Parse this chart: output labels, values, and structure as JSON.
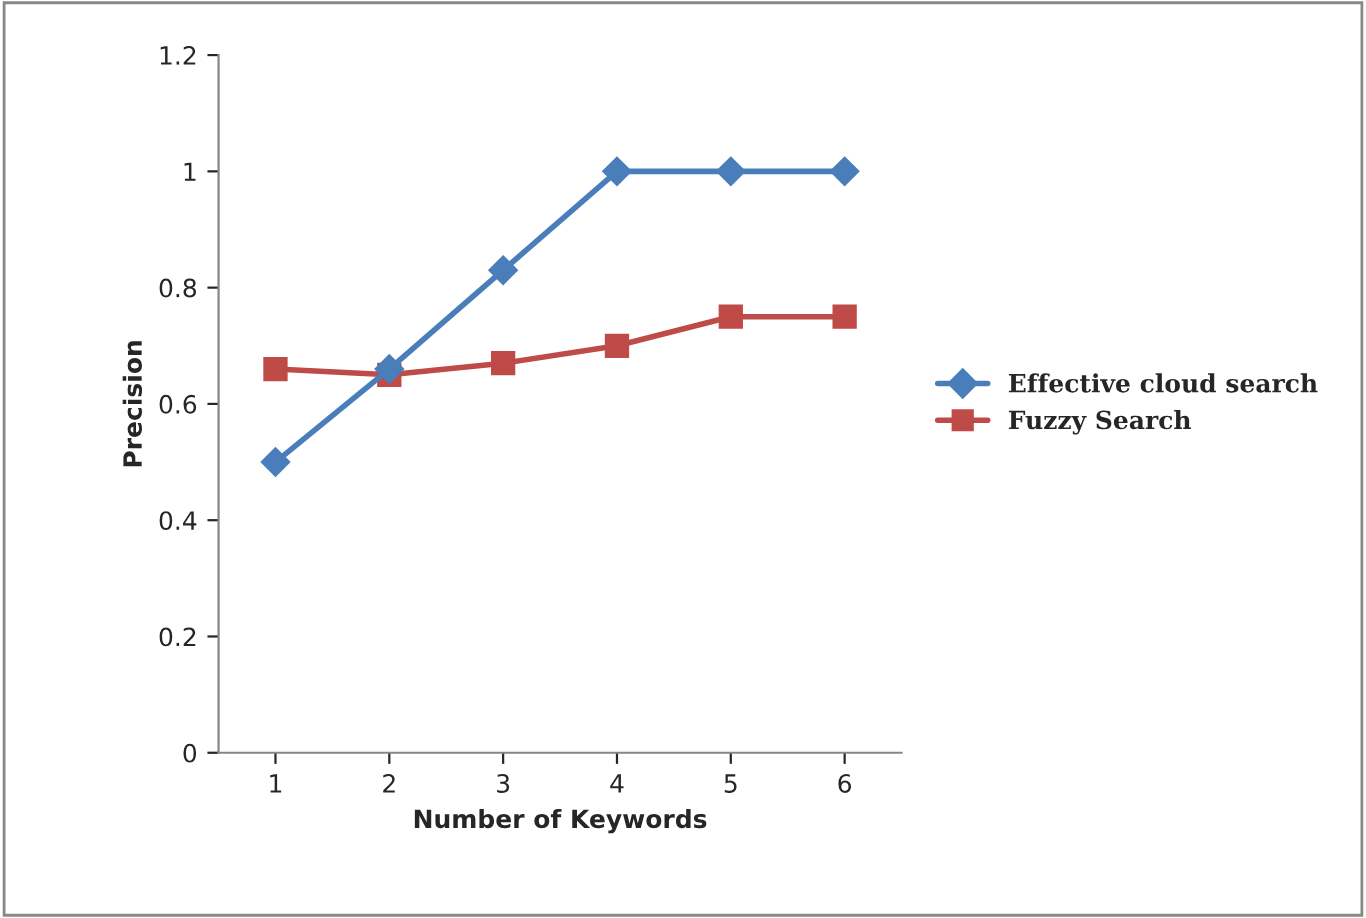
{
  "chart_data": {
    "type": "line",
    "xlabel": "Number of Keywords",
    "ylabel": "Precision",
    "categories": [
      "1",
      "2",
      "3",
      "4",
      "5",
      "6"
    ],
    "series": [
      {
        "name": "Effective cloud search",
        "color": "#4a7ebb",
        "marker": "diamond",
        "values": [
          0.5,
          0.66,
          0.83,
          1,
          1,
          1
        ]
      },
      {
        "name": "Fuzzy Search",
        "color": "#be4b48",
        "marker": "square",
        "values": [
          0.66,
          0.65,
          0.67,
          0.7,
          0.75,
          0.75
        ]
      }
    ],
    "ylim": [
      0,
      1.2
    ],
    "yticks": [
      0,
      {
        "value": 0.2,
        "label": "0.2"
      },
      {
        "value": 0.4,
        "label": "0.4"
      },
      {
        "value": 0.6,
        "label": "0.6"
      },
      {
        "value": 0.8,
        "label": "0.8"
      },
      1,
      {
        "value": 1.2,
        "label": "1.2"
      }
    ],
    "grid": false,
    "legend": "right",
    "line_style": "solid"
  }
}
